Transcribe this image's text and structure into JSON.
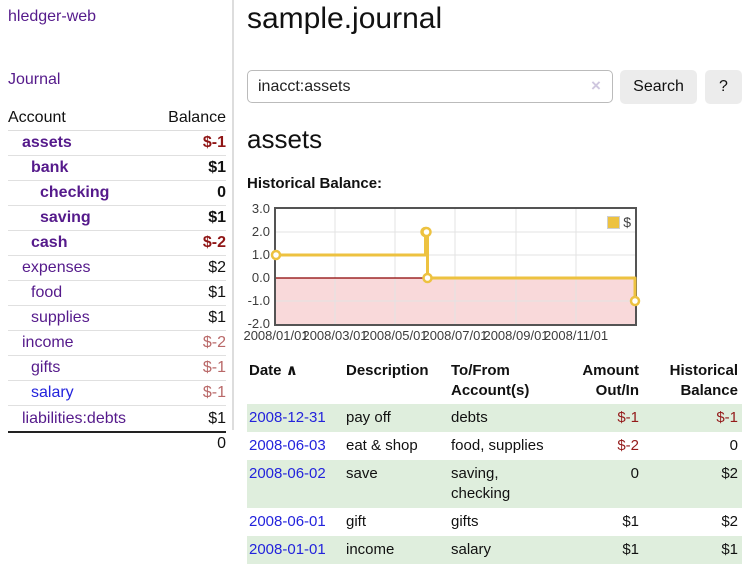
{
  "colors": {
    "link_purple": "#551a8b",
    "link_blue": "#2323dc",
    "negative_strong": "#8f1515",
    "negative_soft": "#b96868",
    "table_negative": "#941a1a",
    "row_stripe_green": "#dfeedd"
  },
  "sidebar": {
    "app_title": "hledger-web",
    "journal_link": "Journal",
    "header": {
      "account": "Account",
      "balance": "Balance"
    },
    "accounts": [
      {
        "name": "assets",
        "balance": "$-1"
      },
      {
        "name": "bank",
        "balance": "$1"
      },
      {
        "name": "checking",
        "balance": "0"
      },
      {
        "name": "saving",
        "balance": "$1"
      },
      {
        "name": "cash",
        "balance": "$-2"
      },
      {
        "name": "expenses",
        "balance": "$2"
      },
      {
        "name": "food",
        "balance": "$1"
      },
      {
        "name": "supplies",
        "balance": "$1"
      },
      {
        "name": "income",
        "balance": "$-2"
      },
      {
        "name": "gifts",
        "balance": "$-1"
      },
      {
        "name": "salary",
        "balance": "$-1"
      },
      {
        "name": "liabilities:debts",
        "balance": "$1"
      }
    ],
    "total": "0"
  },
  "header": {
    "title": "sample.journal"
  },
  "search": {
    "value": "inacct:assets",
    "clear_icon": "×",
    "button_label": "Search",
    "help_label": "?"
  },
  "account_page": {
    "heading": "assets",
    "chart_label": "Historical Balance:"
  },
  "chart_data": {
    "type": "line",
    "style": "steps",
    "title": "Historical Balance",
    "legend": {
      "position": "top-right",
      "label": "$"
    },
    "grid": true,
    "line_color": "#edc240",
    "negative_fill": "#f9d9da",
    "zero_line_color": "#8b0000",
    "xlim": [
      "2008-01-01",
      "2008-12-31"
    ],
    "ylim": [
      -2,
      3
    ],
    "y_ticks": [
      {
        "label": "3.0",
        "value": 3
      },
      {
        "label": "2.0",
        "value": 2
      },
      {
        "label": "1.0",
        "value": 1
      },
      {
        "label": "0.0",
        "value": 0
      },
      {
        "label": "-1.0",
        "value": -1
      },
      {
        "label": "-2.0",
        "value": -2
      }
    ],
    "x_ticks": [
      {
        "label": "2008/01/01",
        "date": "2008-01-01"
      },
      {
        "label": "2008/03/01",
        "date": "2008-03-01"
      },
      {
        "label": "2008/05/01",
        "date": "2008-05-01"
      },
      {
        "label": "2008/07/01",
        "date": "2008-07-01"
      },
      {
        "label": "2008/09/01",
        "date": "2008-09-01"
      },
      {
        "label": "2008/11/01",
        "date": "2008-11-01"
      }
    ],
    "series": [
      {
        "name": "$",
        "points": [
          {
            "date": "2008-01-01",
            "value": 1
          },
          {
            "date": "2008-06-01",
            "value": 2
          },
          {
            "date": "2008-06-02",
            "value": 2
          },
          {
            "date": "2008-06-03",
            "value": 0
          },
          {
            "date": "2008-12-31",
            "value": -1
          }
        ]
      }
    ]
  },
  "table": {
    "headers": {
      "date": "Date",
      "sort_icon": "∧",
      "description": "Description",
      "tofrom": "To/From Account(s)",
      "amount": "Amount Out/In",
      "historical": "Historical Balance"
    },
    "rows": [
      {
        "date": "2008-12-31",
        "description": "pay off",
        "accounts": "debts",
        "amount": "$-1",
        "balance": "$-1"
      },
      {
        "date": "2008-06-03",
        "description": "eat & shop",
        "accounts": "food, supplies",
        "amount": "$-2",
        "balance": "0"
      },
      {
        "date": "2008-06-02",
        "description": "save",
        "accounts": "saving, checking",
        "amount": "0",
        "balance": "$2"
      },
      {
        "date": "2008-06-01",
        "description": "gift",
        "accounts": "gifts",
        "amount": "$1",
        "balance": "$2"
      },
      {
        "date": "2008-01-01",
        "description": "income",
        "accounts": "salary",
        "amount": "$1",
        "balance": "$1"
      }
    ]
  }
}
